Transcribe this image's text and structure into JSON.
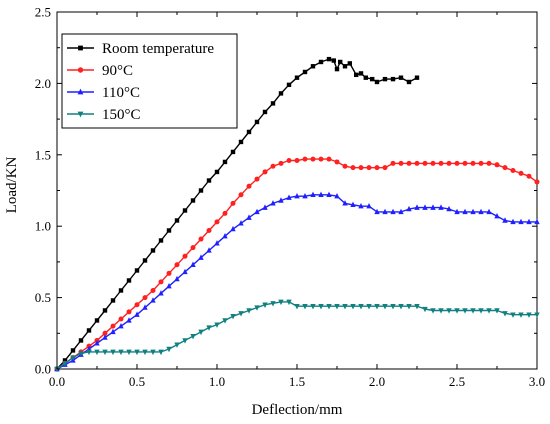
{
  "chart_data": {
    "type": "line",
    "title": "",
    "xlabel": "Deflection/mm",
    "ylabel": "Load/KN",
    "xlim": [
      0.0,
      3.0
    ],
    "ylim": [
      0.0,
      2.5
    ],
    "xticks": [
      "0.0",
      "0.5",
      "1.0",
      "1.5",
      "2.0",
      "2.5",
      "3.0"
    ],
    "yticks": [
      "0.0",
      "0.5",
      "1.0",
      "1.5",
      "2.0",
      "2.5"
    ],
    "grid": false,
    "legend_position": "top-left",
    "series": [
      {
        "name": "Room temperature",
        "color": "#000000",
        "marker": "square",
        "x": [
          0.0,
          0.05,
          0.1,
          0.15,
          0.2,
          0.25,
          0.3,
          0.35,
          0.4,
          0.45,
          0.5,
          0.55,
          0.6,
          0.65,
          0.7,
          0.75,
          0.8,
          0.85,
          0.9,
          0.95,
          1.0,
          1.05,
          1.1,
          1.15,
          1.2,
          1.25,
          1.3,
          1.35,
          1.4,
          1.45,
          1.5,
          1.55,
          1.6,
          1.65,
          1.7,
          1.73,
          1.75,
          1.77,
          1.8,
          1.83,
          1.87,
          1.9,
          1.93,
          1.97,
          2.0,
          2.05,
          2.1,
          2.15,
          2.2,
          2.25
        ],
        "y": [
          0.0,
          0.06,
          0.13,
          0.2,
          0.27,
          0.34,
          0.41,
          0.48,
          0.55,
          0.62,
          0.69,
          0.76,
          0.83,
          0.9,
          0.97,
          1.04,
          1.11,
          1.18,
          1.25,
          1.32,
          1.38,
          1.45,
          1.52,
          1.59,
          1.66,
          1.73,
          1.8,
          1.86,
          1.93,
          1.99,
          2.04,
          2.08,
          2.12,
          2.15,
          2.17,
          2.16,
          2.1,
          2.15,
          2.12,
          2.14,
          2.06,
          2.07,
          2.04,
          2.03,
          2.01,
          2.03,
          2.03,
          2.04,
          2.01,
          2.04
        ]
      },
      {
        "name": "90°C",
        "color": "#ff2020",
        "marker": "circle",
        "x": [
          0.0,
          0.05,
          0.1,
          0.15,
          0.2,
          0.25,
          0.3,
          0.35,
          0.4,
          0.45,
          0.5,
          0.55,
          0.6,
          0.65,
          0.7,
          0.75,
          0.8,
          0.85,
          0.9,
          0.95,
          1.0,
          1.05,
          1.1,
          1.15,
          1.2,
          1.25,
          1.3,
          1.35,
          1.4,
          1.45,
          1.5,
          1.55,
          1.6,
          1.65,
          1.7,
          1.75,
          1.8,
          1.85,
          1.9,
          1.95,
          2.0,
          2.05,
          2.1,
          2.15,
          2.2,
          2.25,
          2.3,
          2.35,
          2.4,
          2.45,
          2.5,
          2.55,
          2.6,
          2.65,
          2.7,
          2.75,
          2.8,
          2.85,
          2.9,
          2.95,
          3.0
        ],
        "y": [
          0.0,
          0.04,
          0.08,
          0.12,
          0.16,
          0.2,
          0.25,
          0.3,
          0.35,
          0.4,
          0.45,
          0.5,
          0.55,
          0.61,
          0.67,
          0.73,
          0.79,
          0.85,
          0.91,
          0.97,
          1.03,
          1.09,
          1.16,
          1.22,
          1.28,
          1.33,
          1.38,
          1.42,
          1.44,
          1.46,
          1.46,
          1.47,
          1.47,
          1.47,
          1.47,
          1.45,
          1.42,
          1.41,
          1.41,
          1.41,
          1.41,
          1.41,
          1.44,
          1.44,
          1.44,
          1.44,
          1.44,
          1.44,
          1.44,
          1.44,
          1.44,
          1.44,
          1.44,
          1.44,
          1.44,
          1.43,
          1.41,
          1.39,
          1.37,
          1.35,
          1.31
        ]
      },
      {
        "name": "110°C",
        "color": "#2020ff",
        "marker": "triangle-up",
        "x": [
          0.0,
          0.05,
          0.1,
          0.15,
          0.2,
          0.25,
          0.3,
          0.35,
          0.4,
          0.45,
          0.5,
          0.55,
          0.6,
          0.65,
          0.7,
          0.75,
          0.8,
          0.85,
          0.9,
          0.95,
          1.0,
          1.05,
          1.1,
          1.15,
          1.2,
          1.25,
          1.3,
          1.35,
          1.4,
          1.45,
          1.5,
          1.55,
          1.6,
          1.65,
          1.7,
          1.75,
          1.8,
          1.85,
          1.9,
          1.95,
          2.0,
          2.05,
          2.1,
          2.15,
          2.2,
          2.25,
          2.3,
          2.35,
          2.4,
          2.45,
          2.5,
          2.55,
          2.6,
          2.65,
          2.7,
          2.75,
          2.8,
          2.85,
          2.9,
          2.95,
          3.0
        ],
        "y": [
          0.0,
          0.03,
          0.06,
          0.1,
          0.14,
          0.18,
          0.22,
          0.26,
          0.3,
          0.34,
          0.38,
          0.43,
          0.48,
          0.53,
          0.58,
          0.63,
          0.68,
          0.73,
          0.78,
          0.83,
          0.88,
          0.93,
          0.98,
          1.02,
          1.06,
          1.1,
          1.13,
          1.16,
          1.18,
          1.2,
          1.21,
          1.21,
          1.22,
          1.22,
          1.22,
          1.21,
          1.16,
          1.15,
          1.14,
          1.14,
          1.1,
          1.1,
          1.1,
          1.1,
          1.12,
          1.13,
          1.13,
          1.13,
          1.13,
          1.12,
          1.1,
          1.1,
          1.1,
          1.1,
          1.1,
          1.07,
          1.04,
          1.03,
          1.03,
          1.03,
          1.03
        ]
      },
      {
        "name": "150°C",
        "color": "#108080",
        "marker": "triangle-down",
        "x": [
          0.0,
          0.05,
          0.1,
          0.15,
          0.2,
          0.25,
          0.3,
          0.35,
          0.4,
          0.45,
          0.5,
          0.55,
          0.6,
          0.65,
          0.7,
          0.75,
          0.8,
          0.85,
          0.9,
          0.95,
          1.0,
          1.05,
          1.1,
          1.15,
          1.2,
          1.25,
          1.3,
          1.35,
          1.4,
          1.45,
          1.5,
          1.55,
          1.6,
          1.65,
          1.7,
          1.75,
          1.8,
          1.85,
          1.9,
          1.95,
          2.0,
          2.05,
          2.1,
          2.15,
          2.2,
          2.25,
          2.3,
          2.35,
          2.4,
          2.45,
          2.5,
          2.55,
          2.6,
          2.65,
          2.7,
          2.75,
          2.8,
          2.85,
          2.9,
          2.95,
          3.0
        ],
        "y": [
          0.0,
          0.04,
          0.08,
          0.11,
          0.12,
          0.12,
          0.12,
          0.12,
          0.12,
          0.12,
          0.12,
          0.12,
          0.12,
          0.12,
          0.14,
          0.17,
          0.2,
          0.23,
          0.26,
          0.29,
          0.31,
          0.34,
          0.37,
          0.39,
          0.41,
          0.43,
          0.45,
          0.46,
          0.47,
          0.47,
          0.44,
          0.44,
          0.44,
          0.44,
          0.44,
          0.44,
          0.44,
          0.44,
          0.44,
          0.44,
          0.44,
          0.44,
          0.44,
          0.44,
          0.44,
          0.44,
          0.42,
          0.41,
          0.41,
          0.41,
          0.41,
          0.41,
          0.41,
          0.41,
          0.41,
          0.41,
          0.39,
          0.38,
          0.38,
          0.38,
          0.38
        ]
      }
    ]
  }
}
